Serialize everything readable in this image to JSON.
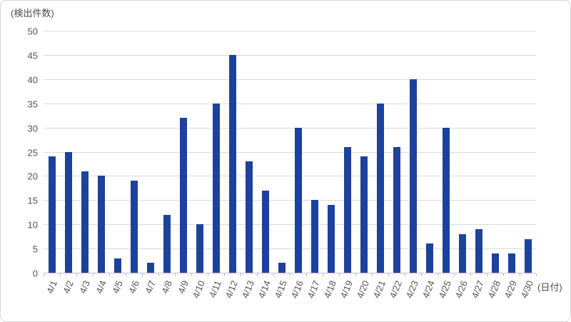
{
  "chart_data": {
    "type": "bar",
    "title": "",
    "ylabel": "(検出件数)",
    "xlabel": "(日付)",
    "categories": [
      "4/1",
      "4/2",
      "4/3",
      "4/4",
      "4/5",
      "4/6",
      "4/7",
      "4/8",
      "4/9",
      "4/10",
      "4/11",
      "4/12",
      "4/13",
      "4/14",
      "4/15",
      "4/16",
      "4/17",
      "4/18",
      "4/19",
      "4/20",
      "4/21",
      "4/22",
      "4/23",
      "4/24",
      "4/25",
      "4/26",
      "4/27",
      "4/28",
      "4/29",
      "4/30"
    ],
    "values": [
      24,
      25,
      21,
      20,
      3,
      19,
      2,
      12,
      32,
      10,
      35,
      45,
      23,
      17,
      2,
      30,
      15,
      14,
      26,
      24,
      35,
      26,
      40,
      6,
      30,
      8,
      9,
      4,
      4,
      7
    ],
    "ylim": [
      0,
      50
    ],
    "yticks": [
      0,
      5,
      10,
      15,
      20,
      25,
      30,
      35,
      40,
      45,
      50
    ],
    "grid": true,
    "legend": false,
    "bar_color": "#1d429b",
    "gridline_color": "#d9d9d9",
    "axis_color": "#bfbfbf",
    "label_color": "#545454"
  }
}
